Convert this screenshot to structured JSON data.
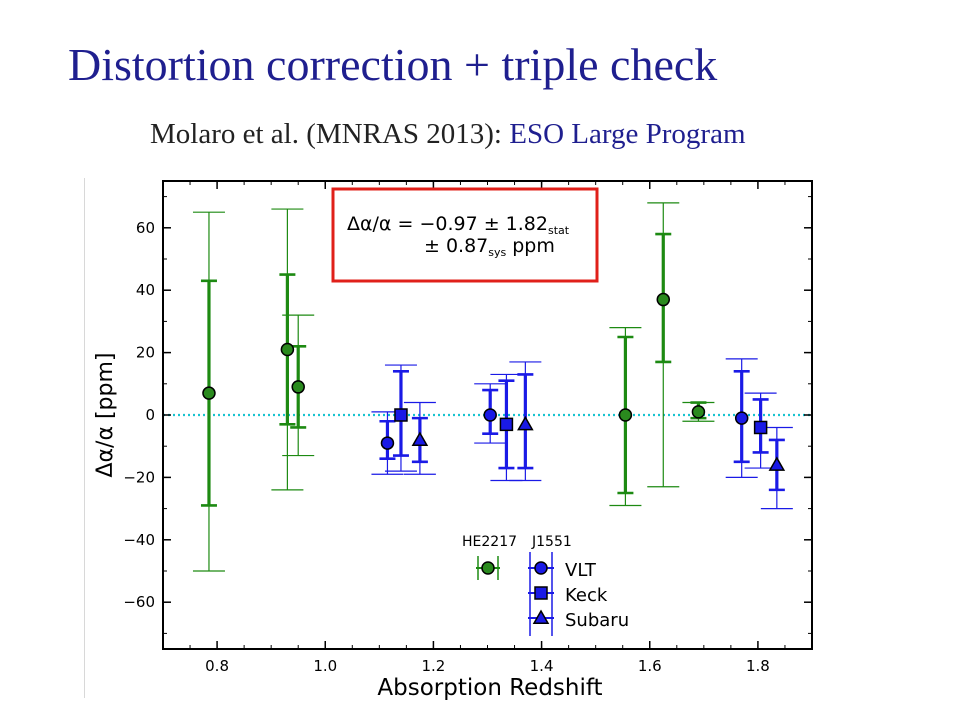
{
  "slide": {
    "title": "Distortion correction + triple check",
    "subtitle_ref": "Molaro et al. (MNRAS 2013):",
    "subtitle_program": "ESO Large Program"
  },
  "colors": {
    "title": "#1f1f8f",
    "green_fill": "#2a8a1e",
    "green_bar": "#1d8a12",
    "blue_fill": "#1a1ae6",
    "blue_bar": "#1a1ae6",
    "zero_line": "#19c3cf",
    "result_box": "#e0201a"
  },
  "chart_data": {
    "type": "scatter",
    "xlabel": "Absorption Redshift",
    "ylabel": "Δα/α [ppm]",
    "xlim": [
      0.7,
      1.9
    ],
    "ylim": [
      -75,
      75
    ],
    "x_ticks": [
      "0.8",
      "1.0",
      "1.2",
      "1.4",
      "1.6",
      "1.8"
    ],
    "y_ticks": [
      "−60",
      "−40",
      "−20",
      "0",
      "20",
      "40",
      "60"
    ],
    "zero_line": true,
    "result_box": {
      "line1": "Δα/α = −0.97 ± 1.82",
      "line1_sub": "stat",
      "line2": "± 0.87",
      "line2_sub": "sys",
      "unit": "ppm"
    },
    "legend": {
      "placement": "bottom-center",
      "label_he": "HE2217",
      "label_j": "J1551",
      "entries": [
        "VLT",
        "Keck",
        "Subaru"
      ]
    },
    "series": [
      {
        "name": "HE2217",
        "marker": "circle",
        "color": "green",
        "points": [
          {
            "x": 0.785,
            "y": 7,
            "stat": [
              -29,
              43
            ],
            "tot": [
              -50,
              65
            ]
          },
          {
            "x": 0.93,
            "y": 21,
            "stat": [
              -3,
              45
            ],
            "tot": [
              -24,
              66
            ]
          },
          {
            "x": 0.95,
            "y": 9,
            "stat": [
              -4,
              22
            ],
            "tot": [
              -13,
              32
            ]
          },
          {
            "x": 1.555,
            "y": 0,
            "stat": [
              -25,
              25
            ],
            "tot": [
              -29,
              28
            ]
          },
          {
            "x": 1.625,
            "y": 37,
            "stat": [
              17,
              58
            ],
            "tot": [
              -23,
              68
            ]
          },
          {
            "x": 1.69,
            "y": 1,
            "stat": [
              -1,
              4
            ],
            "tot": [
              -2,
              4
            ]
          }
        ]
      },
      {
        "name": "VLT",
        "marker": "circle",
        "color": "blue",
        "points": [
          {
            "x": 1.115,
            "y": -9,
            "stat": [
              -14,
              -2
            ],
            "tot": [
              -19,
              1
            ]
          },
          {
            "x": 1.305,
            "y": 0,
            "stat": [
              -6,
              8
            ],
            "tot": [
              -9,
              10
            ]
          },
          {
            "x": 1.77,
            "y": -1,
            "stat": [
              -15,
              14
            ],
            "tot": [
              -20,
              18
            ]
          }
        ]
      },
      {
        "name": "Keck",
        "marker": "square",
        "color": "blue",
        "points": [
          {
            "x": 1.14,
            "y": 0,
            "stat": [
              -13,
              14
            ],
            "tot": [
              -18,
              16
            ]
          },
          {
            "x": 1.335,
            "y": -3,
            "stat": [
              -17,
              11
            ],
            "tot": [
              -21,
              13
            ]
          },
          {
            "x": 1.805,
            "y": -4,
            "stat": [
              -12,
              5
            ],
            "tot": [
              -17,
              7
            ]
          }
        ]
      },
      {
        "name": "Subaru",
        "marker": "triangle",
        "color": "blue",
        "points": [
          {
            "x": 1.175,
            "y": -8,
            "stat": [
              -15,
              -1
            ],
            "tot": [
              -19,
              4
            ]
          },
          {
            "x": 1.37,
            "y": -3,
            "stat": [
              -17,
              13
            ],
            "tot": [
              -21,
              17
            ]
          },
          {
            "x": 1.835,
            "y": -16,
            "stat": [
              -24,
              -8
            ],
            "tot": [
              -30,
              -4
            ]
          }
        ]
      }
    ]
  }
}
